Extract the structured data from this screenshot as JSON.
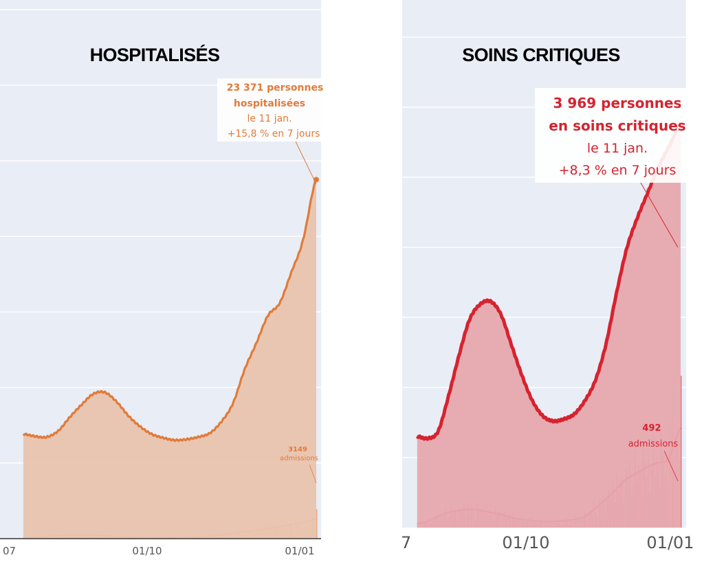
{
  "panels": [
    {
      "title": "HOSPITALISÉS",
      "accent": "#e07b39",
      "fill": "#e9c4ae",
      "annotation": {
        "line1": "23 371 personnes",
        "line2": "hospitalisées",
        "line3": "le 11 jan.",
        "line4": "+15,8 % en 7 jours"
      },
      "admissions": {
        "value": "3149",
        "label": "admissions"
      },
      "x_ticks": [
        "07",
        "01/10",
        "01/01"
      ]
    },
    {
      "title": "SOINS CRITIQUES",
      "accent": "#d6232f",
      "fill": "#e6a9ae",
      "annotation": {
        "line1": "3 969 personnes",
        "line2": "en soins critiques",
        "line3": "le 11 jan.",
        "line4": "+8,3 % en 7 jours"
      },
      "admissions": {
        "value": "492",
        "label": "admissions"
      },
      "x_ticks": [
        "7",
        "01/10",
        "01/01"
      ]
    }
  ],
  "chart_data": [
    {
      "type": "area",
      "title": "HOSPITALISÉS",
      "x": [
        "2021-07-19",
        "2021-07-26",
        "2021-08-02",
        "2021-08-09",
        "2021-08-16",
        "2021-08-23",
        "2021-08-30",
        "2021-09-06",
        "2021-09-13",
        "2021-09-20",
        "2021-09-27",
        "2021-10-04",
        "2021-10-11",
        "2021-10-18",
        "2021-10-25",
        "2021-11-01",
        "2021-11-08",
        "2021-11-15",
        "2021-11-22",
        "2021-11-29",
        "2021-12-06",
        "2021-12-13",
        "2021-12-20",
        "2021-12-27",
        "2022-01-03",
        "2022-01-11"
      ],
      "series": [
        {
          "name": "",
          "values": [
            6800,
            6650,
            6600,
            7000,
            7900,
            8700,
            9400,
            9500,
            8900,
            8000,
            7300,
            6800,
            6550,
            6400,
            6450,
            6600,
            6850,
            7600,
            8800,
            11000,
            12700,
            14500,
            15300,
            17300,
            19400,
            23371
          ]
        },
        {
          "name": "admissions",
          "values": [
            180,
            250,
            380,
            470,
            560,
            580,
            560,
            450,
            380,
            300,
            250,
            230,
            220,
            230,
            250,
            300,
            400,
            620,
            900,
            1150,
            1400,
            1650,
            1900,
            2300,
            2650,
            3149
          ]
        }
      ]
    },
    {
      "type": "area",
      "title": "SOINS CRITIQUES",
      "x": [
        "2021-07-19",
        "2021-07-26",
        "2021-08-02",
        "2021-08-09",
        "2021-08-16",
        "2021-08-23",
        "2021-08-30",
        "2021-09-06",
        "2021-09-13",
        "2021-09-20",
        "2021-09-27",
        "2021-10-04",
        "2021-10-11",
        "2021-10-18",
        "2021-10-25",
        "2021-11-01",
        "2021-11-08",
        "2021-11-15",
        "2021-11-22",
        "2021-11-29",
        "2021-12-06",
        "2021-12-13",
        "2021-12-20",
        "2021-12-27",
        "2022-01-03",
        "2022-01-11"
      ],
      "series": [
        {
          "name": "",
          "values": [
            900,
            880,
            950,
            1300,
            1700,
            2050,
            2200,
            2230,
            2100,
            1800,
            1500,
            1250,
            1100,
            1050,
            1070,
            1120,
            1250,
            1450,
            1800,
            2300,
            2750,
            3050,
            3300,
            3550,
            3750,
            3969
          ]
        },
        {
          "name": "admissions",
          "values": [
            20,
            30,
            55,
            75,
            85,
            90,
            85,
            75,
            65,
            50,
            40,
            35,
            30,
            30,
            35,
            40,
            55,
            95,
            140,
            190,
            240,
            270,
            300,
            320,
            340,
            492
          ]
        }
      ]
    }
  ]
}
